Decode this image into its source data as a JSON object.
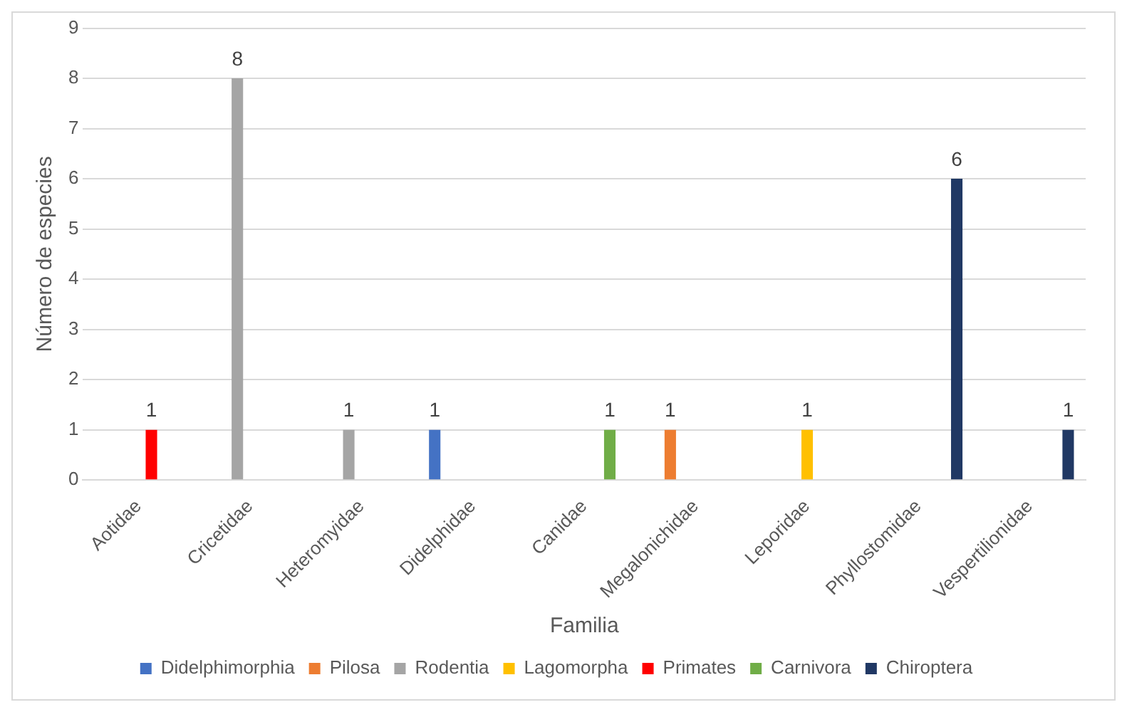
{
  "chart_data": {
    "type": "bar",
    "xlabel": "Familia",
    "ylabel": "Número de especies",
    "categories": [
      "Aotidae",
      "Cricetidae",
      "Heteromyidae",
      "Didelphidae",
      "Canidae",
      "Megalonichidae",
      "Leporidae",
      "Phyllostomidae",
      "Vespertilionidae"
    ],
    "series": [
      {
        "name": "Didelphimorphia",
        "color": "#4472c4",
        "values": [
          null,
          null,
          null,
          1,
          null,
          null,
          null,
          null,
          null
        ]
      },
      {
        "name": "Pilosa",
        "color": "#ed7d31",
        "values": [
          null,
          null,
          null,
          null,
          null,
          1,
          null,
          null,
          null
        ]
      },
      {
        "name": "Rodentia",
        "color": "#a5a5a5",
        "values": [
          null,
          8,
          1,
          null,
          null,
          null,
          null,
          null,
          null
        ]
      },
      {
        "name": "Lagomorpha",
        "color": "#ffc000",
        "values": [
          null,
          null,
          null,
          null,
          null,
          null,
          1,
          null,
          null
        ]
      },
      {
        "name": "Primates",
        "color": "#ff0000",
        "values": [
          1,
          null,
          null,
          null,
          null,
          null,
          null,
          null,
          null
        ]
      },
      {
        "name": "Carnivora",
        "color": "#70ad47",
        "values": [
          null,
          null,
          null,
          null,
          1,
          null,
          null,
          null,
          null
        ]
      },
      {
        "name": "Chiroptera",
        "color": "#203864",
        "values": [
          null,
          null,
          null,
          null,
          null,
          null,
          null,
          6,
          1
        ]
      }
    ],
    "ylim": [
      0,
      9
    ],
    "yticks": [
      0,
      1,
      2,
      3,
      4,
      5,
      6,
      7,
      8,
      9
    ],
    "grid": "y",
    "legend": "bottom",
    "data_labels": true
  }
}
